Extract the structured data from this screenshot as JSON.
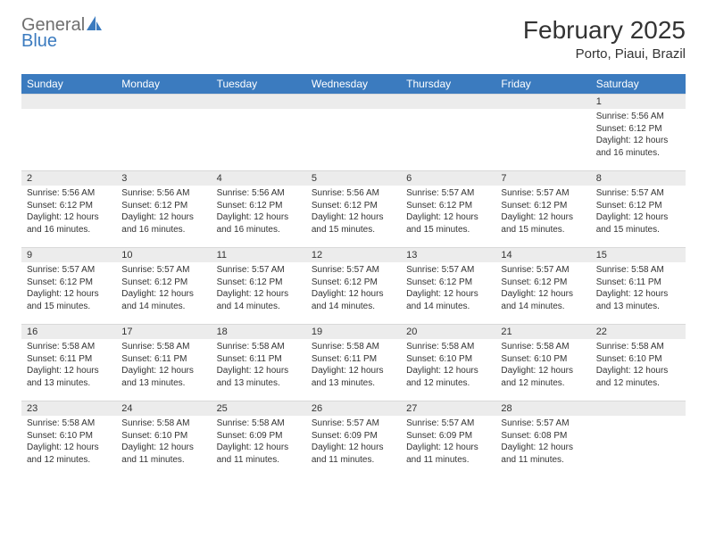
{
  "brand": {
    "word1": "General",
    "word2": "Blue",
    "word1_color": "#6f6f6f",
    "word2_color": "#3b7bbf",
    "icon_color": "#3b7bbf"
  },
  "title": "February 2025",
  "location": "Porto, Piaui, Brazil",
  "header_bg": "#3b7bbf",
  "header_fg": "#ffffff",
  "daynum_bg": "#ececec",
  "text_color": "#333333",
  "days_of_week": [
    "Sunday",
    "Monday",
    "Tuesday",
    "Wednesday",
    "Thursday",
    "Friday",
    "Saturday"
  ],
  "weeks": [
    [
      null,
      null,
      null,
      null,
      null,
      null,
      {
        "n": "1",
        "sunrise": "Sunrise: 5:56 AM",
        "sunset": "Sunset: 6:12 PM",
        "daylight": "Daylight: 12 hours and 16 minutes."
      }
    ],
    [
      {
        "n": "2",
        "sunrise": "Sunrise: 5:56 AM",
        "sunset": "Sunset: 6:12 PM",
        "daylight": "Daylight: 12 hours and 16 minutes."
      },
      {
        "n": "3",
        "sunrise": "Sunrise: 5:56 AM",
        "sunset": "Sunset: 6:12 PM",
        "daylight": "Daylight: 12 hours and 16 minutes."
      },
      {
        "n": "4",
        "sunrise": "Sunrise: 5:56 AM",
        "sunset": "Sunset: 6:12 PM",
        "daylight": "Daylight: 12 hours and 16 minutes."
      },
      {
        "n": "5",
        "sunrise": "Sunrise: 5:56 AM",
        "sunset": "Sunset: 6:12 PM",
        "daylight": "Daylight: 12 hours and 15 minutes."
      },
      {
        "n": "6",
        "sunrise": "Sunrise: 5:57 AM",
        "sunset": "Sunset: 6:12 PM",
        "daylight": "Daylight: 12 hours and 15 minutes."
      },
      {
        "n": "7",
        "sunrise": "Sunrise: 5:57 AM",
        "sunset": "Sunset: 6:12 PM",
        "daylight": "Daylight: 12 hours and 15 minutes."
      },
      {
        "n": "8",
        "sunrise": "Sunrise: 5:57 AM",
        "sunset": "Sunset: 6:12 PM",
        "daylight": "Daylight: 12 hours and 15 minutes."
      }
    ],
    [
      {
        "n": "9",
        "sunrise": "Sunrise: 5:57 AM",
        "sunset": "Sunset: 6:12 PM",
        "daylight": "Daylight: 12 hours and 15 minutes."
      },
      {
        "n": "10",
        "sunrise": "Sunrise: 5:57 AM",
        "sunset": "Sunset: 6:12 PM",
        "daylight": "Daylight: 12 hours and 14 minutes."
      },
      {
        "n": "11",
        "sunrise": "Sunrise: 5:57 AM",
        "sunset": "Sunset: 6:12 PM",
        "daylight": "Daylight: 12 hours and 14 minutes."
      },
      {
        "n": "12",
        "sunrise": "Sunrise: 5:57 AM",
        "sunset": "Sunset: 6:12 PM",
        "daylight": "Daylight: 12 hours and 14 minutes."
      },
      {
        "n": "13",
        "sunrise": "Sunrise: 5:57 AM",
        "sunset": "Sunset: 6:12 PM",
        "daylight": "Daylight: 12 hours and 14 minutes."
      },
      {
        "n": "14",
        "sunrise": "Sunrise: 5:57 AM",
        "sunset": "Sunset: 6:12 PM",
        "daylight": "Daylight: 12 hours and 14 minutes."
      },
      {
        "n": "15",
        "sunrise": "Sunrise: 5:58 AM",
        "sunset": "Sunset: 6:11 PM",
        "daylight": "Daylight: 12 hours and 13 minutes."
      }
    ],
    [
      {
        "n": "16",
        "sunrise": "Sunrise: 5:58 AM",
        "sunset": "Sunset: 6:11 PM",
        "daylight": "Daylight: 12 hours and 13 minutes."
      },
      {
        "n": "17",
        "sunrise": "Sunrise: 5:58 AM",
        "sunset": "Sunset: 6:11 PM",
        "daylight": "Daylight: 12 hours and 13 minutes."
      },
      {
        "n": "18",
        "sunrise": "Sunrise: 5:58 AM",
        "sunset": "Sunset: 6:11 PM",
        "daylight": "Daylight: 12 hours and 13 minutes."
      },
      {
        "n": "19",
        "sunrise": "Sunrise: 5:58 AM",
        "sunset": "Sunset: 6:11 PM",
        "daylight": "Daylight: 12 hours and 13 minutes."
      },
      {
        "n": "20",
        "sunrise": "Sunrise: 5:58 AM",
        "sunset": "Sunset: 6:10 PM",
        "daylight": "Daylight: 12 hours and 12 minutes."
      },
      {
        "n": "21",
        "sunrise": "Sunrise: 5:58 AM",
        "sunset": "Sunset: 6:10 PM",
        "daylight": "Daylight: 12 hours and 12 minutes."
      },
      {
        "n": "22",
        "sunrise": "Sunrise: 5:58 AM",
        "sunset": "Sunset: 6:10 PM",
        "daylight": "Daylight: 12 hours and 12 minutes."
      }
    ],
    [
      {
        "n": "23",
        "sunrise": "Sunrise: 5:58 AM",
        "sunset": "Sunset: 6:10 PM",
        "daylight": "Daylight: 12 hours and 12 minutes."
      },
      {
        "n": "24",
        "sunrise": "Sunrise: 5:58 AM",
        "sunset": "Sunset: 6:10 PM",
        "daylight": "Daylight: 12 hours and 11 minutes."
      },
      {
        "n": "25",
        "sunrise": "Sunrise: 5:58 AM",
        "sunset": "Sunset: 6:09 PM",
        "daylight": "Daylight: 12 hours and 11 minutes."
      },
      {
        "n": "26",
        "sunrise": "Sunrise: 5:57 AM",
        "sunset": "Sunset: 6:09 PM",
        "daylight": "Daylight: 12 hours and 11 minutes."
      },
      {
        "n": "27",
        "sunrise": "Sunrise: 5:57 AM",
        "sunset": "Sunset: 6:09 PM",
        "daylight": "Daylight: 12 hours and 11 minutes."
      },
      {
        "n": "28",
        "sunrise": "Sunrise: 5:57 AM",
        "sunset": "Sunset: 6:08 PM",
        "daylight": "Daylight: 12 hours and 11 minutes."
      },
      null
    ]
  ]
}
